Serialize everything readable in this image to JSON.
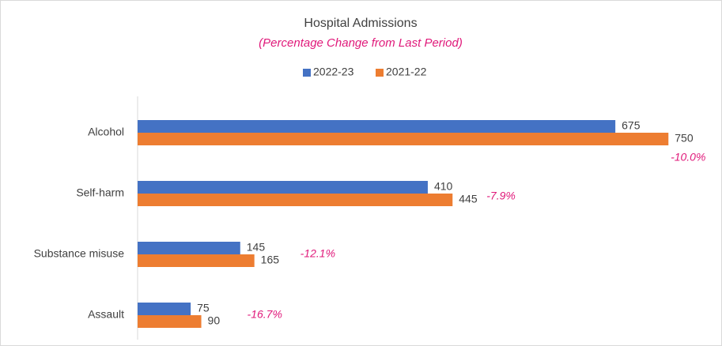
{
  "chart_data": {
    "type": "bar",
    "orientation": "horizontal",
    "title": "Hospital Admissions",
    "subtitle": "(Percentage Change from Last Period)",
    "categories": [
      "Alcohol",
      "Self-harm",
      "Substance misuse",
      "Assault"
    ],
    "series": [
      {
        "name": "2022-23",
        "color": "#4472c4",
        "values": [
          675,
          410,
          145,
          75
        ]
      },
      {
        "name": "2021-22",
        "color": "#ed7d31",
        "values": [
          750,
          445,
          165,
          90
        ]
      }
    ],
    "annotations": [
      "-10.0%",
      "-7.9%",
      "-12.1%",
      "-16.7%"
    ],
    "annotation_color": "#e0197a",
    "xlim": [
      0,
      800
    ],
    "legend": "top",
    "data_labels": true
  }
}
